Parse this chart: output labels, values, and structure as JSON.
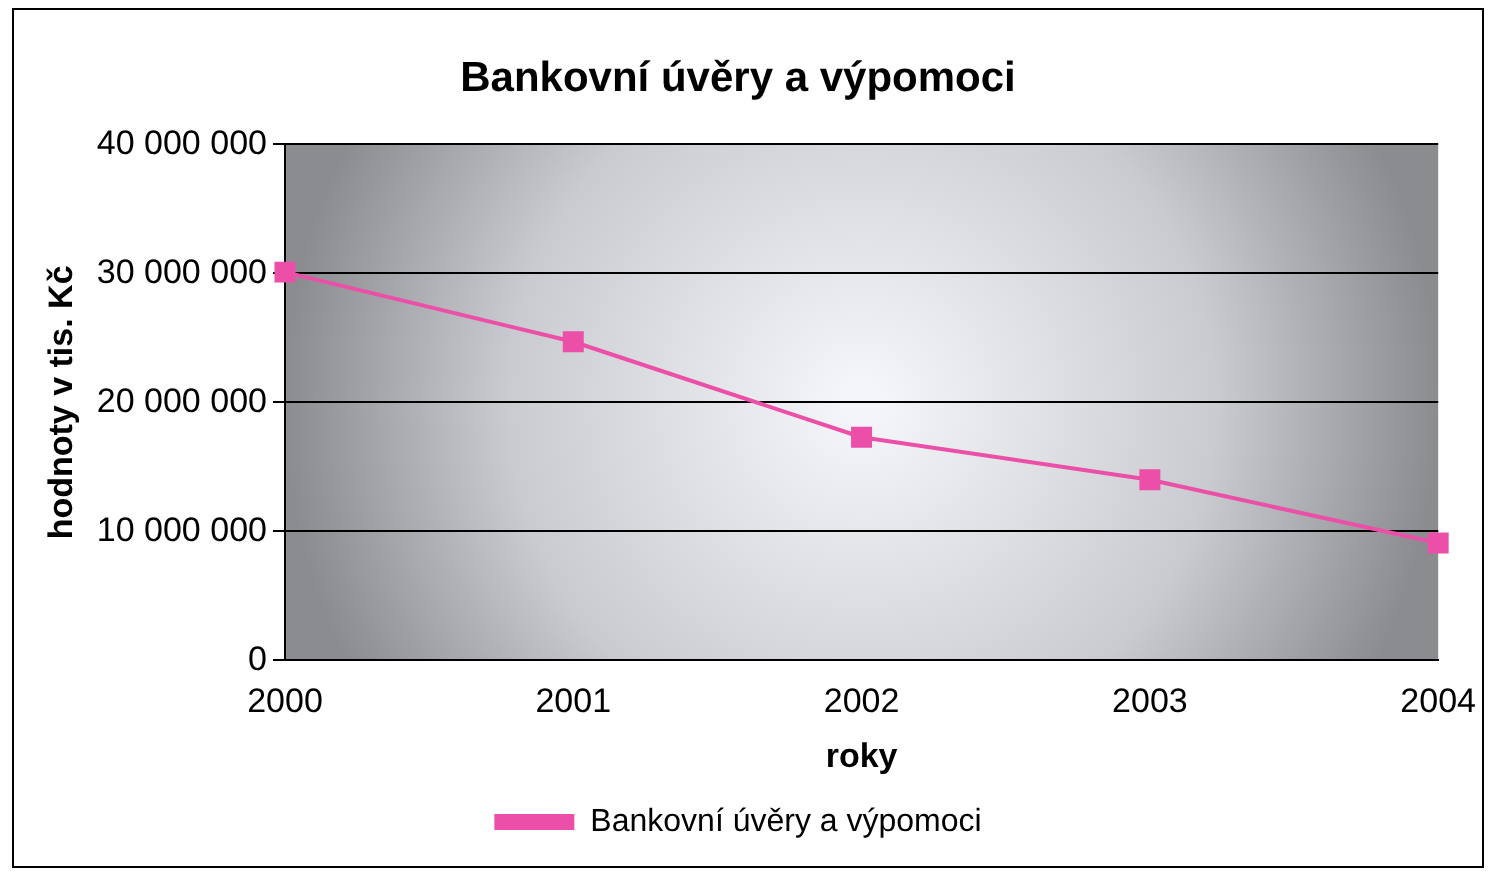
{
  "chart_data": {
    "type": "line",
    "title": "Bankovní úvěry a výpomoci",
    "xlabel": "roky",
    "ylabel": "hodnoty v tis. Kč",
    "categories": [
      "2000",
      "2001",
      "2002",
      "2003",
      "2004"
    ],
    "series": [
      {
        "name": "Bankovní úvěry a výpomoci",
        "color": "#ec4fa7",
        "values": [
          30100000,
          24700000,
          17300000,
          14000000,
          9100000
        ]
      }
    ],
    "ylim": [
      0,
      40000000
    ],
    "yticks": [
      {
        "value": 0,
        "label": "0"
      },
      {
        "value": 10000000,
        "label": "10 000 000"
      },
      {
        "value": 20000000,
        "label": "20 000 000"
      },
      {
        "value": 30000000,
        "label": "30 000 000"
      },
      {
        "value": 40000000,
        "label": "40 000 000"
      }
    ],
    "grid": "y",
    "legend": "bottom",
    "marker": "square",
    "line_style": "solid"
  }
}
